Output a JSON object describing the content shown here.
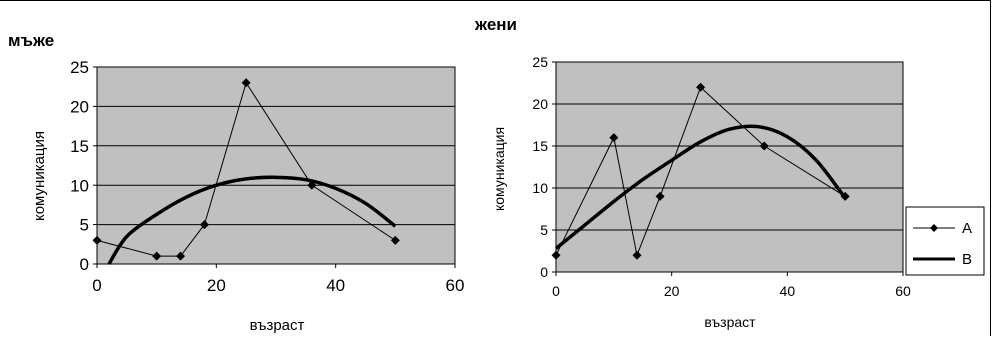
{
  "colors": {
    "plot_bg": "#c0c0c0",
    "grid": "#000000",
    "series_a": "#000000",
    "series_b": "#000000"
  },
  "legend": {
    "placement": "right",
    "items": [
      "A",
      "B"
    ]
  },
  "chart_data": [
    {
      "type": "line",
      "title": "мъже",
      "xlabel": "възраст",
      "ylabel": "комуникация",
      "xlim": [
        0,
        60
      ],
      "ylim": [
        0,
        25
      ],
      "xticks": [
        0,
        20,
        40,
        60
      ],
      "yticks": [
        0,
        5,
        10,
        15,
        20,
        25
      ],
      "grid": true,
      "series": [
        {
          "name": "A",
          "x": [
            0,
            10,
            14,
            18,
            25,
            36,
            50
          ],
          "y": [
            3,
            1,
            1,
            5,
            23,
            10,
            3
          ]
        },
        {
          "name": "B",
          "x": [
            2,
            5,
            10,
            15,
            20,
            25,
            30,
            35,
            40,
            45,
            50
          ],
          "y": [
            0,
            3.5,
            6.3,
            8.5,
            10,
            10.8,
            11,
            10.7,
            9.6,
            7.7,
            4.8
          ]
        }
      ]
    },
    {
      "type": "line",
      "title": "жени",
      "xlabel": "възраст",
      "ylabel": "комуникация",
      "xlim": [
        0,
        60
      ],
      "ylim": [
        0,
        25
      ],
      "xticks": [
        0,
        20,
        40,
        60
      ],
      "yticks": [
        0,
        5,
        10,
        15,
        20,
        25
      ],
      "grid": true,
      "series": [
        {
          "name": "A",
          "x": [
            0,
            10,
            14,
            18,
            25,
            36,
            50
          ],
          "y": [
            2,
            16,
            2,
            9,
            22,
            15,
            9
          ]
        },
        {
          "name": "B",
          "x": [
            0,
            5,
            10,
            15,
            20,
            25,
            30,
            35,
            40,
            45,
            50
          ],
          "y": [
            2.8,
            5.6,
            8.4,
            11,
            13.3,
            15.5,
            17,
            17.3,
            16.1,
            13.3,
            8.8
          ]
        }
      ]
    }
  ]
}
